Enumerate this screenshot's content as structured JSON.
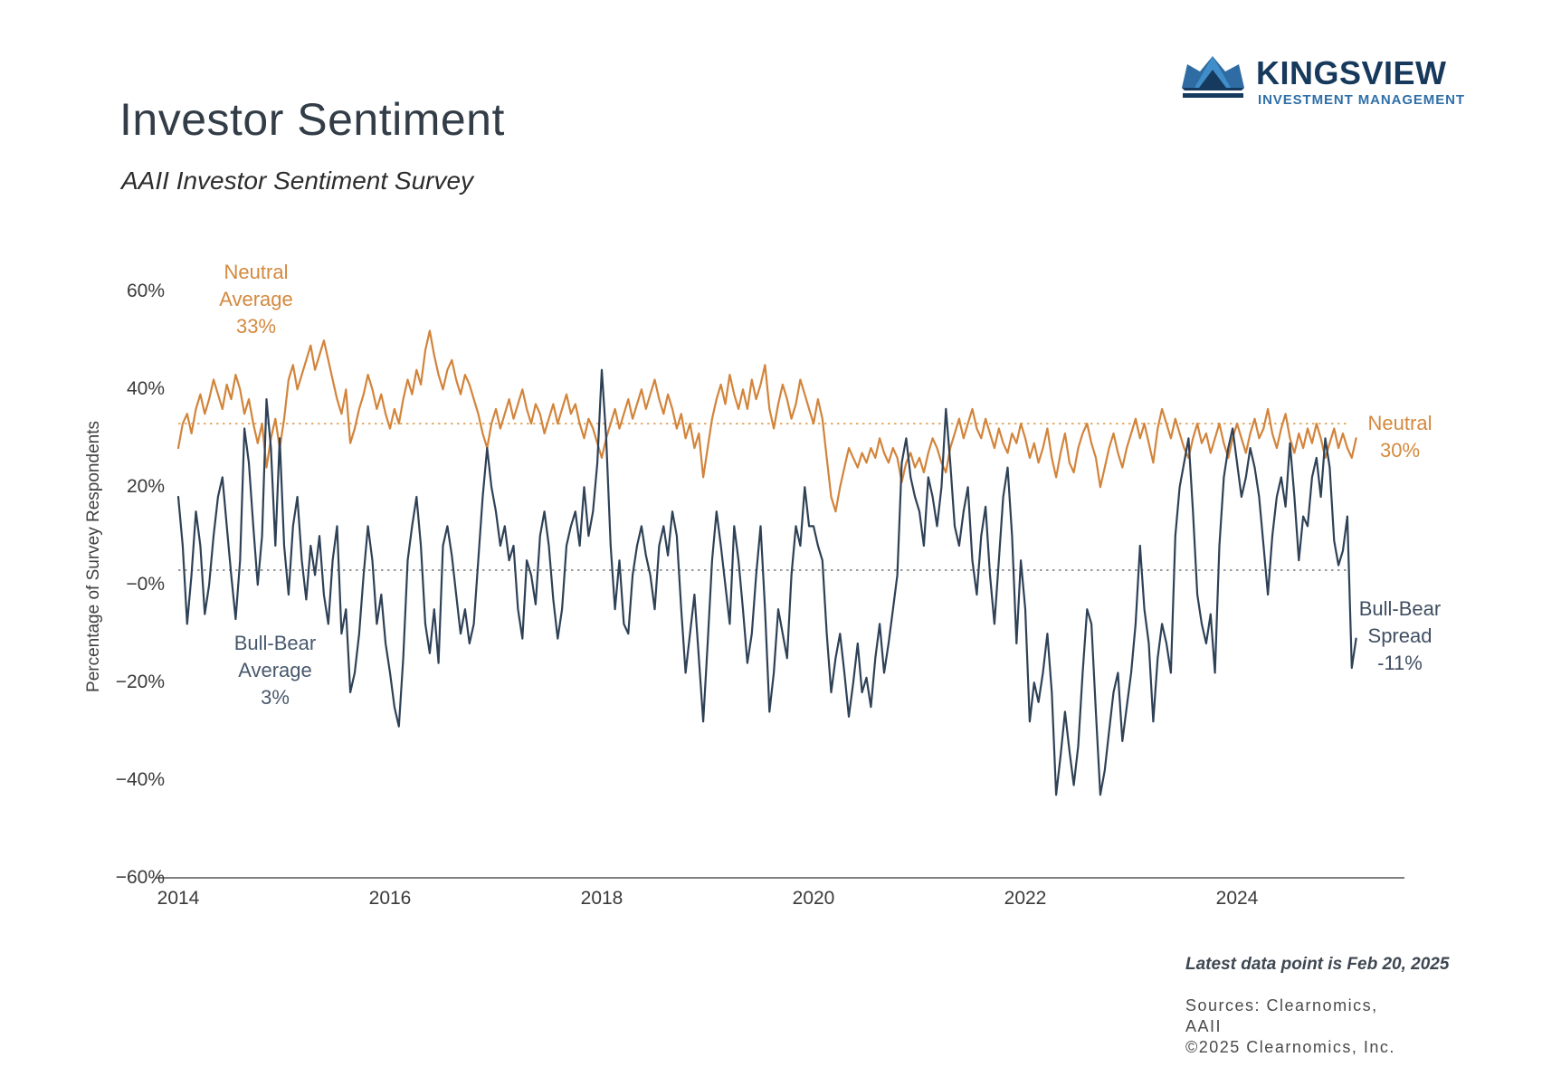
{
  "header": {
    "title": "Investor Sentiment",
    "subtitle": "AAII Investor Sentiment Survey"
  },
  "logo": {
    "wordmark": "KINGSVIEW",
    "tagline": "INVESTMENT MANAGEMENT",
    "colors": {
      "wordmark": "#16395c",
      "tagline": "#2f6fa8",
      "crown_light": "#3f8ec9",
      "crown_mid": "#2e6ca3",
      "crown_dark": "#16395e"
    }
  },
  "chart_data": {
    "type": "line",
    "title": "Investor Sentiment",
    "subtitle": "AAII Investor Sentiment Survey",
    "ylabel": "Percentage of Survey Respondents",
    "xlabel": "",
    "ylim": [
      -60,
      60
    ],
    "xlim": [
      2014.0,
      2025.3
    ],
    "grid": false,
    "legend_position": "inline-annotations",
    "y_ticks": [
      {
        "label": "60%",
        "value": 60
      },
      {
        "label": "40%",
        "value": 40
      },
      {
        "label": "20%",
        "value": 20
      },
      {
        "label": "−0%",
        "value": 0
      },
      {
        "label": "−20%",
        "value": -20
      },
      {
        "label": "−40%",
        "value": -40
      },
      {
        "label": "−60%",
        "value": -60
      }
    ],
    "x_ticks": [
      {
        "label": "2014",
        "value": 2014
      },
      {
        "label": "2016",
        "value": 2016
      },
      {
        "label": "2018",
        "value": 2018
      },
      {
        "label": "2020",
        "value": 2020
      },
      {
        "label": "2022",
        "value": 2022
      },
      {
        "label": "2024",
        "value": 2024
      }
    ],
    "x_start": 2014.0,
    "x_step_years": 0.0416667,
    "colors": {
      "neutral": "#d2843b",
      "spread": "#2e4156",
      "neutral_avg_line": "#dfa45b",
      "spread_avg_line": "#8c8c8c",
      "axis": "#808080"
    },
    "series": [
      {
        "name": "Neutral",
        "color": "#d2843b",
        "average": 33,
        "average_label": "Neutral\nAverage\n33%",
        "end_label": "Neutral\n30%",
        "end_value": 30,
        "values": [
          28,
          33,
          35,
          31,
          36,
          39,
          35,
          38,
          42,
          39,
          36,
          41,
          38,
          43,
          40,
          35,
          38,
          33,
          29,
          33,
          24,
          30,
          34,
          28,
          34,
          42,
          45,
          40,
          43,
          46,
          49,
          44,
          47,
          50,
          46,
          42,
          38,
          35,
          40,
          29,
          32,
          36,
          39,
          43,
          40,
          36,
          39,
          35,
          32,
          36,
          33,
          38,
          42,
          39,
          44,
          41,
          48,
          52,
          47,
          43,
          40,
          44,
          46,
          42,
          39,
          43,
          41,
          38,
          35,
          31,
          28,
          33,
          36,
          32,
          35,
          38,
          34,
          37,
          40,
          36,
          33,
          37,
          35,
          31,
          34,
          37,
          33,
          36,
          39,
          35,
          37,
          33,
          30,
          34,
          32,
          29,
          26,
          30,
          33,
          36,
          32,
          35,
          38,
          34,
          37,
          40,
          36,
          39,
          42,
          38,
          35,
          39,
          36,
          32,
          35,
          30,
          33,
          28,
          31,
          22,
          28,
          34,
          38,
          41,
          37,
          43,
          39,
          36,
          40,
          36,
          42,
          38,
          41,
          45,
          36,
          32,
          37,
          41,
          38,
          34,
          37,
          42,
          39,
          36,
          33,
          38,
          34,
          26,
          18,
          15,
          20,
          24,
          28,
          26,
          24,
          27,
          25,
          28,
          26,
          30,
          27,
          25,
          28,
          26,
          21,
          25,
          27,
          24,
          26,
          23,
          27,
          30,
          28,
          25,
          23,
          28,
          31,
          34,
          30,
          33,
          36,
          32,
          30,
          34,
          31,
          28,
          32,
          29,
          27,
          31,
          29,
          33,
          30,
          26,
          29,
          25,
          28,
          32,
          26,
          22,
          27,
          31,
          25,
          23,
          28,
          31,
          33,
          29,
          26,
          20,
          24,
          28,
          31,
          27,
          24,
          28,
          31,
          34,
          30,
          33,
          29,
          25,
          32,
          36,
          33,
          30,
          34,
          31,
          28,
          26,
          30,
          33,
          29,
          31,
          27,
          30,
          33,
          29,
          26,
          30,
          33,
          30,
          27,
          31,
          34,
          30,
          32,
          36,
          31,
          28,
          32,
          35,
          30,
          27,
          31,
          28,
          32,
          29,
          33,
          30,
          26,
          29,
          32,
          28,
          31,
          28,
          26,
          30
        ]
      },
      {
        "name": "Bull-Bear Spread",
        "color": "#2e4156",
        "average": 3,
        "average_label": "Bull-Bear\nAverage\n3%",
        "end_label": "Bull-Bear\nSpread\n-11%",
        "end_value": -11,
        "values": [
          18,
          8,
          -8,
          2,
          15,
          8,
          -6,
          0,
          10,
          18,
          22,
          12,
          2,
          -7,
          5,
          32,
          25,
          12,
          0,
          10,
          38,
          28,
          8,
          30,
          8,
          -2,
          12,
          18,
          5,
          -3,
          8,
          2,
          10,
          -2,
          -8,
          5,
          12,
          -10,
          -5,
          -22,
          -18,
          -10,
          2,
          12,
          5,
          -8,
          -2,
          -12,
          -18,
          -25,
          -29,
          -15,
          5,
          12,
          18,
          8,
          -8,
          -14,
          -5,
          -16,
          8,
          12,
          6,
          -2,
          -10,
          -5,
          -12,
          -8,
          5,
          18,
          28,
          20,
          15,
          8,
          12,
          5,
          8,
          -5,
          -11,
          5,
          2,
          -4,
          10,
          15,
          8,
          -3,
          -11,
          -5,
          8,
          12,
          15,
          8,
          20,
          10,
          15,
          25,
          44,
          30,
          8,
          -5,
          5,
          -8,
          -10,
          2,
          8,
          12,
          6,
          2,
          -5,
          8,
          12,
          6,
          15,
          10,
          -5,
          -18,
          -10,
          -2,
          -15,
          -28,
          -12,
          5,
          15,
          8,
          0,
          -8,
          12,
          5,
          -5,
          -16,
          -10,
          2,
          12,
          -5,
          -26,
          -18,
          -5,
          -10,
          -15,
          2,
          12,
          8,
          20,
          12,
          12,
          8,
          5,
          -10,
          -22,
          -15,
          -10,
          -18,
          -27,
          -20,
          -12,
          -22,
          -19,
          -25,
          -15,
          -8,
          -18,
          -12,
          -5,
          2,
          25,
          30,
          22,
          18,
          15,
          8,
          22,
          18,
          12,
          20,
          36,
          25,
          12,
          8,
          15,
          20,
          5,
          -2,
          10,
          16,
          2,
          -8,
          5,
          18,
          24,
          10,
          -12,
          5,
          -5,
          -28,
          -20,
          -24,
          -18,
          -10,
          -22,
          -43,
          -35,
          -26,
          -34,
          -41,
          -33,
          -18,
          -5,
          -8,
          -26,
          -43,
          -38,
          -30,
          -22,
          -18,
          -32,
          -25,
          -18,
          -8,
          8,
          -5,
          -12,
          -28,
          -15,
          -8,
          -12,
          -18,
          10,
          20,
          25,
          30,
          15,
          -2,
          -8,
          -12,
          -6,
          -18,
          8,
          22,
          28,
          32,
          25,
          18,
          22,
          28,
          24,
          18,
          8,
          -2,
          10,
          18,
          22,
          16,
          29,
          18,
          5,
          14,
          12,
          22,
          26,
          18,
          30,
          24,
          9,
          4,
          7,
          14,
          -17,
          -11
        ]
      }
    ],
    "footnote": "Latest data point is Feb 20, 2025",
    "sources": [
      "Sources: Clearnomics,",
      "AAII",
      "©2025 Clearnomics, Inc."
    ]
  }
}
